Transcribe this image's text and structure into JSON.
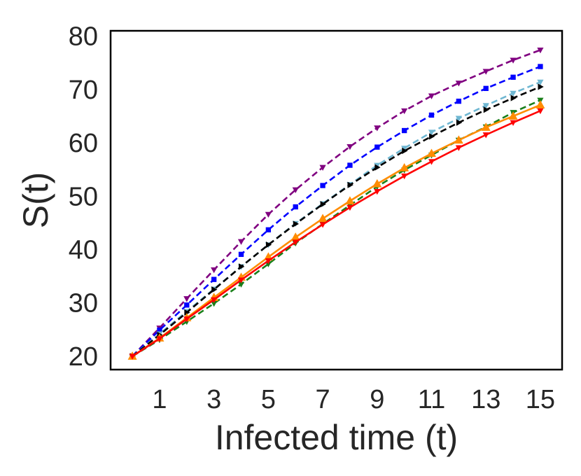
{
  "chart_data": {
    "type": "line",
    "title": "",
    "xlabel": "Infected time (t)",
    "ylabel": "S(t)",
    "xlim": [
      -0.8,
      15.8
    ],
    "ylim": [
      17.5,
      81
    ],
    "x_ticks": [
      1,
      3,
      5,
      7,
      9,
      11,
      13,
      15
    ],
    "x_tick_labels": [
      "1",
      "3",
      "5",
      "7",
      "9",
      "11",
      "13",
      "15"
    ],
    "y_ticks": [
      20,
      30,
      40,
      50,
      60,
      70,
      80
    ],
    "y_tick_labels": [
      "20",
      "30",
      "40",
      "50",
      "60",
      "70",
      "80"
    ],
    "grid": false,
    "legend": "none",
    "x": [
      0,
      1,
      2,
      3,
      4,
      5,
      6,
      7,
      8,
      9,
      10,
      11,
      12,
      13,
      14,
      15
    ],
    "series": [
      {
        "name": "series-purple",
        "color": "#800080",
        "dash": "dashed",
        "marker": "triangle-down",
        "values": [
          20,
          25.3,
          30.8,
          36.2,
          41.5,
          46.6,
          51.2,
          55.4,
          59.3,
          62.8,
          66.0,
          68.8,
          71.2,
          73.4,
          75.5,
          77.4
        ]
      },
      {
        "name": "series-blue",
        "color": "#0000ff",
        "dash": "dashed",
        "marker": "square",
        "values": [
          20,
          24.9,
          29.6,
          34.4,
          39.1,
          43.7,
          48.0,
          52.0,
          55.8,
          59.2,
          62.3,
          65.2,
          67.8,
          70.2,
          72.3,
          74.3
        ]
      },
      {
        "name": "series-lightblue",
        "color": "#6fb7d2",
        "dash": "dashed",
        "marker": "triangle-down",
        "values": [
          20,
          24.2,
          28.4,
          32.6,
          36.8,
          40.9,
          44.9,
          48.6,
          52.2,
          55.8,
          59.0,
          62.0,
          64.6,
          67.0,
          69.3,
          71.4
        ]
      },
      {
        "name": "series-black",
        "color": "#000000",
        "dash": "dashed",
        "marker": "triangle-right",
        "values": [
          20,
          24.0,
          28.2,
          32.5,
          36.8,
          40.9,
          44.8,
          48.5,
          52.1,
          55.4,
          58.5,
          61.2,
          63.8,
          66.2,
          68.4,
          70.5
        ]
      },
      {
        "name": "series-green",
        "color": "#1a7f1a",
        "dash": "dashed",
        "marker": "triangle-down",
        "values": [
          20,
          23.1,
          26.5,
          29.9,
          33.5,
          37.3,
          41.2,
          44.8,
          48.3,
          51.8,
          54.9,
          57.7,
          60.5,
          63.0,
          65.7,
          68.0
        ]
      },
      {
        "name": "series-orange",
        "color": "#ff8c00",
        "dash": "solid",
        "marker": "triangle-up",
        "values": [
          20,
          23.4,
          27.2,
          31.0,
          34.8,
          38.6,
          42.3,
          45.8,
          49.1,
          52.3,
          55.3,
          58.0,
          60.5,
          62.9,
          65.0,
          67.1
        ]
      },
      {
        "name": "series-red",
        "color": "#ff0000",
        "dash": "solid",
        "marker": "triangle-down",
        "values": [
          20,
          23.3,
          27.0,
          30.6,
          34.3,
          37.9,
          41.4,
          44.7,
          47.9,
          50.9,
          53.8,
          56.5,
          59.1,
          61.5,
          63.8,
          66.0
        ]
      }
    ]
  }
}
